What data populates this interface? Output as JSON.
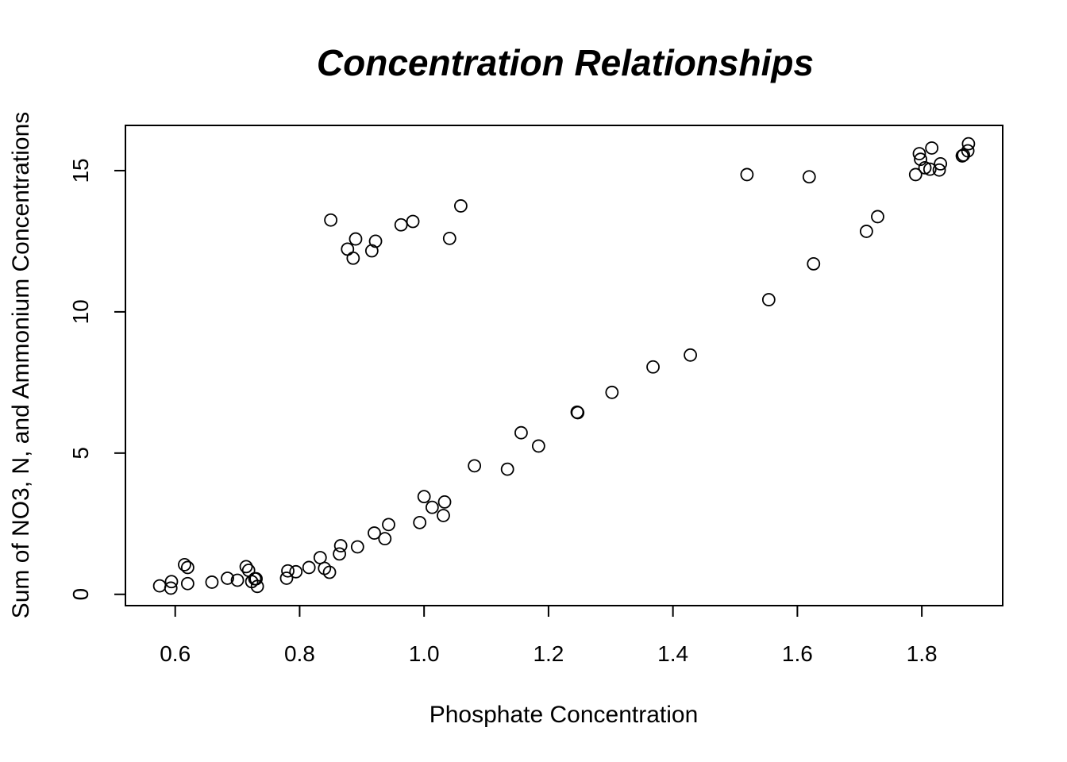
{
  "chart_data": {
    "type": "scatter",
    "title": "Concentration Relationships",
    "xlabel": "Phosphate Concentration",
    "ylabel": "Sum of NO3, N, and Ammonium Concentrations",
    "xlim": [
      0.52,
      1.93
    ],
    "ylim": [
      -0.4,
      16.6
    ],
    "x_ticks": [
      0.6,
      0.8,
      1.0,
      1.2,
      1.4,
      1.6,
      1.8
    ],
    "x_tick_labels": [
      "0.6",
      "0.8",
      "1.0",
      "1.2",
      "1.4",
      "1.6",
      "1.8"
    ],
    "y_ticks": [
      0,
      5,
      10,
      15
    ],
    "y_tick_labels": [
      "0",
      "5",
      "10",
      "15"
    ],
    "grid": false,
    "legend": "none",
    "marker": "open-circle",
    "series": [
      {
        "x": [
          0.575,
          0.593,
          0.594,
          0.615,
          0.62,
          0.62,
          0.659,
          0.684,
          0.7,
          0.714,
          0.718,
          0.723,
          0.728,
          0.73,
          0.732,
          0.779,
          0.781,
          0.794,
          0.815,
          0.833,
          0.84,
          0.848,
          0.864,
          0.866,
          0.893,
          0.92,
          0.937,
          0.943,
          0.993,
          1.0,
          1.013,
          1.031,
          1.033,
          1.081,
          1.134,
          1.156,
          1.184,
          1.246,
          1.247,
          1.302,
          1.368,
          1.428,
          1.554,
          1.626,
          1.711,
          1.729,
          0.85,
          0.877,
          0.886,
          0.89,
          0.916,
          0.922,
          0.963,
          0.982,
          1.041,
          1.059,
          1.519,
          1.619,
          1.79,
          1.796,
          1.798,
          1.805,
          1.813,
          1.816,
          1.828,
          1.83,
          1.865,
          1.867,
          1.874,
          1.875
        ],
        "y": [
          0.3,
          0.22,
          0.45,
          1.05,
          0.95,
          0.38,
          0.43,
          0.57,
          0.5,
          0.98,
          0.85,
          0.45,
          0.55,
          0.55,
          0.28,
          0.57,
          0.83,
          0.8,
          0.95,
          1.3,
          0.92,
          0.78,
          1.43,
          1.72,
          1.68,
          2.17,
          1.97,
          2.47,
          2.54,
          3.46,
          3.08,
          2.79,
          3.27,
          4.55,
          4.43,
          5.72,
          5.25,
          6.45,
          6.43,
          7.15,
          8.05,
          8.47,
          10.43,
          11.7,
          12.85,
          13.37,
          13.25,
          12.22,
          11.9,
          12.58,
          12.16,
          12.5,
          13.08,
          13.2,
          12.6,
          13.75,
          14.86,
          14.78,
          14.86,
          15.6,
          15.4,
          15.1,
          15.05,
          15.8,
          15.02,
          15.24,
          15.52,
          15.55,
          15.7,
          15.95
        ]
      }
    ]
  }
}
